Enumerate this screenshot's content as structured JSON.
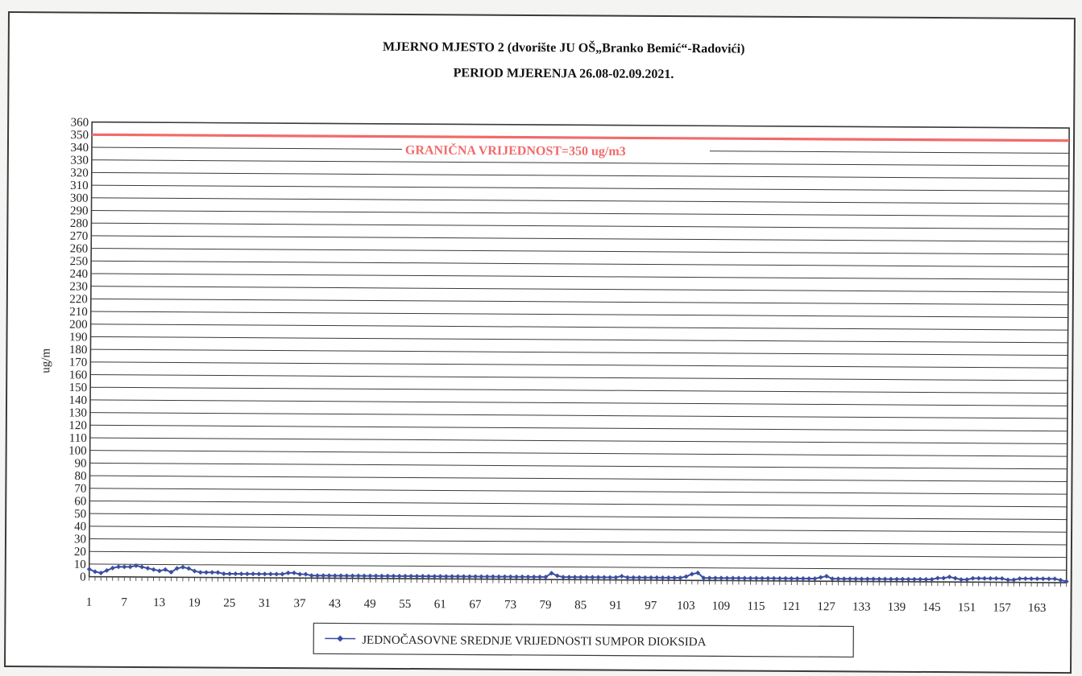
{
  "chart_data": {
    "type": "line",
    "title": "MJERNO MJESTO 2 (dvorište JU OŠ„Branko Bemić“-Radovići)",
    "subtitle": "PERIOD MJERENJA 26.08-02.09.2021.",
    "xlabel": "",
    "ylabel": "ug/m",
    "ylim": [
      0,
      360
    ],
    "y_ticks": [
      0,
      10,
      20,
      30,
      40,
      50,
      60,
      70,
      80,
      90,
      100,
      110,
      120,
      130,
      140,
      150,
      160,
      170,
      180,
      190,
      200,
      210,
      220,
      230,
      240,
      250,
      260,
      270,
      280,
      290,
      300,
      310,
      320,
      330,
      340,
      350,
      360
    ],
    "x_range": [
      1,
      168
    ],
    "x_ticks": [
      1,
      7,
      13,
      19,
      25,
      31,
      37,
      43,
      49,
      55,
      61,
      67,
      73,
      79,
      85,
      91,
      97,
      103,
      109,
      115,
      121,
      127,
      133,
      139,
      145,
      151,
      157,
      163
    ],
    "grid": true,
    "legend_position": "bottom-center",
    "limit_line": {
      "value": 350,
      "label": "GRANIČNA VRIJEDNOST=350 ug/m3",
      "color": "#f06b6b"
    },
    "series": [
      {
        "name": "JEDNOČASOVNE SREDNJE VRIJEDNOSTI SUMPOR DIOKSIDA",
        "color": "#3b4fa0",
        "values": [
          6,
          4,
          3,
          5,
          7,
          8,
          8,
          8,
          9,
          8,
          7,
          6,
          5,
          6,
          4,
          7,
          8,
          7,
          5,
          4,
          4,
          4,
          4,
          3,
          3,
          3,
          3,
          3,
          3,
          3,
          3,
          3,
          3,
          3,
          4,
          4,
          3,
          3,
          2,
          2,
          2,
          2,
          2,
          2,
          2,
          2,
          2,
          2,
          2,
          2,
          2,
          2,
          2,
          2,
          2,
          2,
          2,
          2,
          2,
          2,
          2,
          2,
          2,
          2,
          2,
          2,
          2,
          2,
          2,
          2,
          2,
          2,
          2,
          2,
          2,
          2,
          2,
          2,
          2,
          5,
          3,
          2,
          2,
          2,
          2,
          2,
          2,
          2,
          2,
          2,
          2,
          3,
          2,
          2,
          2,
          2,
          2,
          2,
          2,
          2,
          2,
          2,
          3,
          5,
          6,
          2,
          2,
          2,
          2,
          2,
          2,
          2,
          2,
          2,
          2,
          2,
          2,
          2,
          2,
          2,
          2,
          2,
          2,
          2,
          2,
          3,
          4,
          2,
          2,
          2,
          2,
          2,
          2,
          2,
          2,
          2,
          2,
          2,
          2,
          2,
          2,
          2,
          2,
          2,
          2,
          3,
          3,
          4,
          3,
          2,
          2,
          3,
          3,
          3,
          3,
          3,
          3,
          2,
          2,
          3,
          3,
          3,
          3,
          3,
          3,
          3,
          2,
          1
        ]
      }
    ]
  },
  "colors": {
    "background": "#ffffff",
    "grid": "#3a3a3a",
    "series": "#3b4fa0",
    "limit": "#f06b6b"
  }
}
